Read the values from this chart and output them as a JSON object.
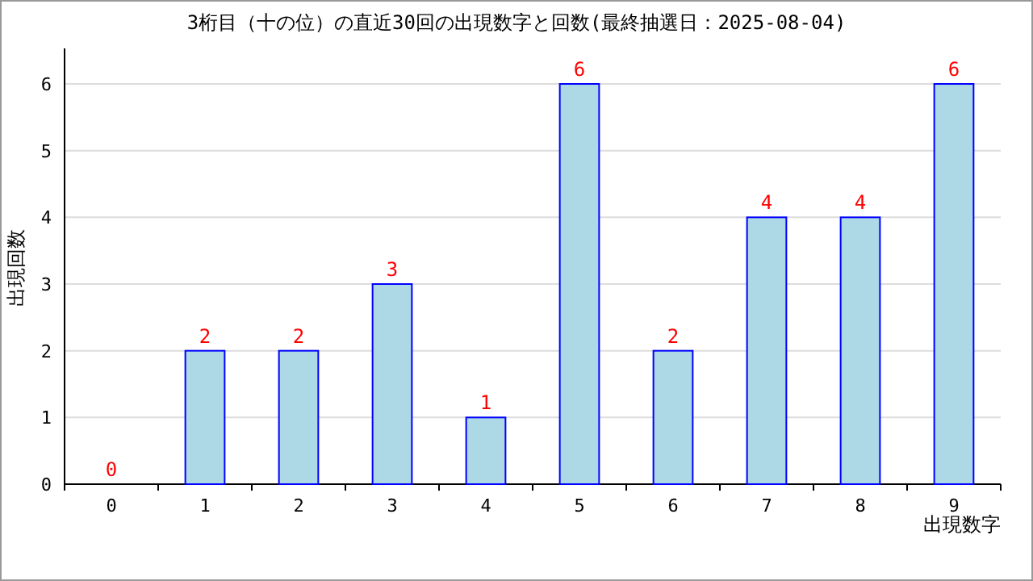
{
  "chart_data": {
    "type": "bar",
    "title": "3桁目（十の位）の直近30回の出現数字と回数(最終抽選日：2025-08-04)",
    "xlabel": "出現数字",
    "ylabel": "出現回数",
    "categories": [
      "0",
      "1",
      "2",
      "3",
      "4",
      "5",
      "6",
      "7",
      "8",
      "9"
    ],
    "series": [
      {
        "color": "#add8e6",
        "values": [
          0,
          2,
          2,
          3,
          1,
          6,
          2,
          4,
          4,
          6
        ]
      }
    ],
    "ylim": [
      0,
      6
    ],
    "yticks": [
      0,
      1,
      2,
      3,
      4,
      5,
      6
    ],
    "grid": "y",
    "data_labels": true
  }
}
